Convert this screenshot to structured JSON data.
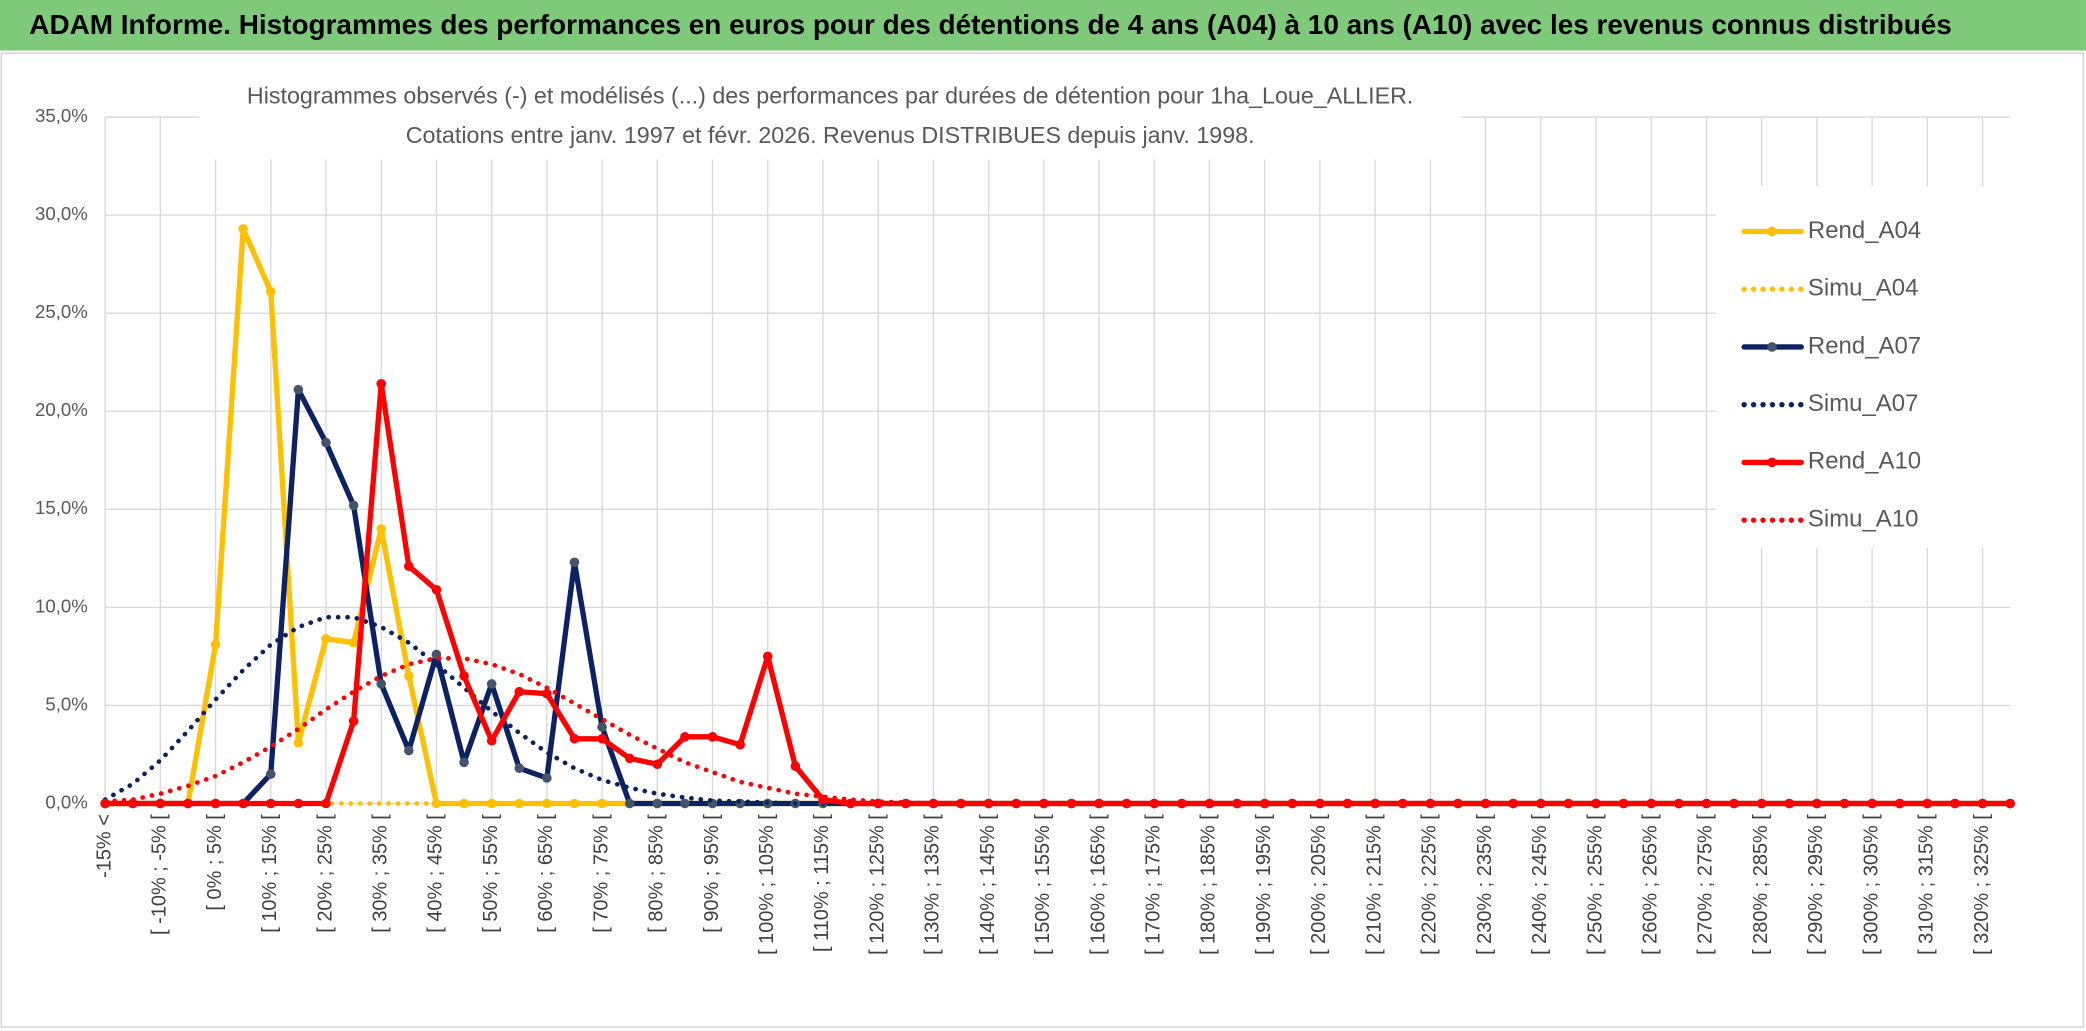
{
  "header": {
    "title": "ADAM Informe. Histogrammes des performances en euros pour des détentions de 4 ans (A04) à 10 ans (A10) avec les revenus connus distribués"
  },
  "chart_data": {
    "type": "line",
    "title": "Histogrammes observés (-) et modélisés (...) des performances par durées de détention pour 1ha_Loue_ALLIER.",
    "subtitle": "Cotations entre janv. 1997 et févr. 2026. Revenus DISTRIBUES depuis janv. 1998.",
    "categories": [
      "-15% <",
      null,
      "[ -10% ; -5% [",
      null,
      "[ 0% ; 5% [",
      null,
      "[ 10% ; 15% [",
      null,
      "[ 20% ; 25% [",
      null,
      "[ 30% ; 35% [",
      null,
      "[ 40% ; 45% [",
      null,
      "[ 50% ; 55% [",
      null,
      "[ 60% ; 65% [",
      null,
      "[ 70% ; 75% [",
      null,
      "[ 80% ; 85% [",
      null,
      "[ 90% ; 95% [",
      null,
      "[ 100% ; 105% [",
      null,
      "[ 110% ; 115% [",
      null,
      "[ 120% ; 125% [",
      null,
      "[ 130% ; 135% [",
      null,
      "[ 140% ; 145% [",
      null,
      "[ 150% ; 155% [",
      null,
      "[ 160% ; 165% [",
      null,
      "[ 170% ; 175% [",
      null,
      "[ 180% ; 185% [",
      null,
      "[ 190% ; 195% [",
      null,
      "[ 200% ; 205% [",
      null,
      "[ 210% ; 215% [",
      null,
      "[ 220% ; 225% [",
      null,
      "[ 230% ; 235% [",
      null,
      "[ 240% ; 245% [",
      null,
      "[ 250% ; 255% [",
      null,
      "[ 260% ; 265% [",
      null,
      "[ 270% ; 275% [",
      null,
      "[ 280% ; 285% [",
      null,
      "[ 290% ; 295% [",
      null,
      "[ 300% ; 305% [",
      null,
      "[ 310% ; 315% [",
      null,
      "[ 320% ; 325% [",
      null
    ],
    "ylim": [
      0,
      35
    ],
    "yticks": [
      {
        "value": 0,
        "label": "0,0%"
      },
      {
        "value": 5,
        "label": "5,0%"
      },
      {
        "value": 10,
        "label": "10,0%"
      },
      {
        "value": 15,
        "label": "15,0%"
      },
      {
        "value": 20,
        "label": "20,0%"
      },
      {
        "value": 25,
        "label": "25,0%"
      },
      {
        "value": 30,
        "label": "30,0%"
      },
      {
        "value": 35,
        "label": "35,0%"
      }
    ],
    "grid": true,
    "legend": "right",
    "series": [
      {
        "name": "Rend_A04",
        "color": "#ffc000",
        "dashed": false,
        "markers": true,
        "values": [
          0,
          0,
          0,
          0,
          8.1,
          29.3,
          26.1,
          3.1,
          8.4,
          8.2,
          14.0,
          6.5,
          0,
          0,
          0,
          0,
          0,
          0,
          0,
          0,
          0,
          0,
          0,
          0,
          0,
          0,
          0,
          0,
          0,
          0,
          0,
          0,
          0,
          0,
          0,
          0,
          0,
          0,
          0,
          0,
          0,
          0,
          0,
          0,
          0,
          0,
          0,
          0,
          0,
          0,
          0,
          0,
          0,
          0,
          0,
          0,
          0,
          0,
          0,
          0,
          0,
          0,
          0,
          0,
          0,
          0,
          0,
          0,
          0,
          0
        ]
      },
      {
        "name": "Simu_A04",
        "color": "#ffc000",
        "dashed": true,
        "markers": false,
        "values": [
          0,
          0,
          0,
          0,
          0,
          0,
          0,
          0,
          0,
          0,
          0,
          0,
          0,
          0,
          0,
          0,
          0,
          0,
          0,
          0,
          0,
          0,
          0,
          0,
          0,
          0,
          0,
          0,
          0,
          0,
          0,
          0,
          0,
          0,
          0,
          0,
          0,
          0,
          0,
          0,
          0,
          0,
          0,
          0,
          0,
          0,
          0,
          0,
          0,
          0,
          0,
          0,
          0,
          0,
          0,
          0,
          0,
          0,
          0,
          0,
          0,
          0,
          0,
          0,
          0,
          0,
          0,
          0,
          0,
          0
        ]
      },
      {
        "name": "Rend_A07",
        "color": "#0d2260",
        "dashed": false,
        "markers": true,
        "values": [
          0,
          0,
          0,
          0,
          0,
          0,
          1.5,
          21.1,
          18.4,
          15.2,
          6.1,
          2.7,
          7.6,
          2.1,
          6.1,
          1.8,
          1.3,
          12.3,
          3.9,
          0,
          0,
          0,
          0,
          0,
          0,
          0,
          0,
          0,
          0,
          0,
          0,
          0,
          0,
          0,
          0,
          0,
          0,
          0,
          0,
          0,
          0,
          0,
          0,
          0,
          0,
          0,
          0,
          0,
          0,
          0,
          0,
          0,
          0,
          0,
          0,
          0,
          0,
          0,
          0,
          0,
          0,
          0,
          0,
          0,
          0,
          0,
          0,
          0,
          0,
          0
        ]
      },
      {
        "name": "Simu_A07",
        "color": "#0d2260",
        "dashed": true,
        "markers": false,
        "values": [
          0.2,
          1.0,
          2.2,
          3.7,
          5.3,
          6.8,
          8.1,
          9.0,
          9.5,
          9.5,
          9.0,
          8.2,
          7.1,
          5.9,
          4.7,
          3.6,
          2.6,
          1.8,
          1.2,
          0.8,
          0.5,
          0.3,
          0.15,
          0.1,
          0.05,
          0,
          0,
          0,
          0,
          0,
          0,
          0,
          0,
          0,
          0,
          0,
          0,
          0,
          0,
          0,
          0,
          0,
          0,
          0,
          0,
          0,
          0,
          0,
          0,
          0,
          0,
          0,
          0,
          0,
          0,
          0,
          0,
          0,
          0,
          0,
          0,
          0,
          0,
          0,
          0,
          0,
          0,
          0,
          0,
          0
        ]
      },
      {
        "name": "Rend_A10",
        "color": "#ff0000",
        "dashed": false,
        "markers": true,
        "values": [
          0,
          0,
          0,
          0,
          0,
          0,
          0,
          0,
          0,
          4.2,
          21.4,
          12.1,
          10.9,
          6.5,
          3.2,
          5.7,
          5.6,
          3.3,
          3.3,
          2.3,
          2.0,
          3.4,
          3.4,
          3.0,
          7.5,
          1.9,
          0.2,
          0,
          0,
          0,
          0,
          0,
          0,
          0,
          0,
          0,
          0,
          0,
          0,
          0,
          0,
          0,
          0,
          0,
          0,
          0,
          0,
          0,
          0,
          0,
          0,
          0,
          0,
          0,
          0,
          0,
          0,
          0,
          0,
          0,
          0,
          0,
          0,
          0,
          0,
          0,
          0,
          0,
          0,
          0
        ]
      },
      {
        "name": "Simu_A10",
        "color": "#ff0000",
        "dashed": true,
        "markers": false,
        "values": [
          0.1,
          0.2,
          0.5,
          0.9,
          1.4,
          2.1,
          2.9,
          3.8,
          4.8,
          5.7,
          6.5,
          7.1,
          7.4,
          7.4,
          7.1,
          6.6,
          5.9,
          5.1,
          4.3,
          3.5,
          2.8,
          2.1,
          1.6,
          1.1,
          0.8,
          0.5,
          0.35,
          0.2,
          0.1,
          0.05,
          0,
          0,
          0,
          0,
          0,
          0,
          0,
          0,
          0,
          0,
          0,
          0,
          0,
          0,
          0,
          0,
          0,
          0,
          0,
          0,
          0,
          0,
          0,
          0,
          0,
          0,
          0,
          0,
          0,
          0,
          0,
          0,
          0,
          0,
          0,
          0,
          0,
          0,
          0,
          0
        ]
      }
    ]
  }
}
